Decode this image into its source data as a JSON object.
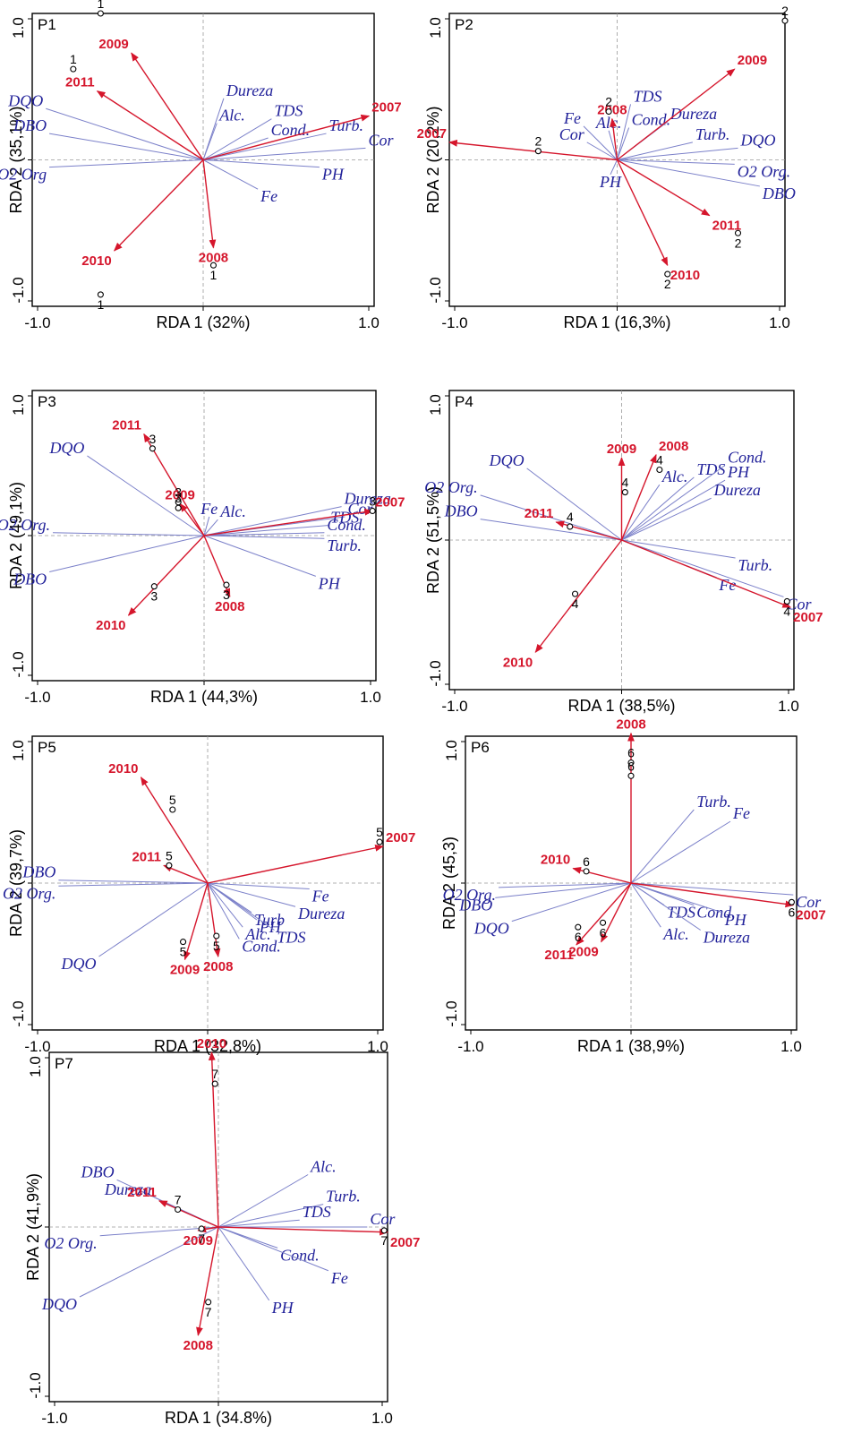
{
  "chart_data": [
    {
      "type": "scatter",
      "panel": "P1",
      "xlabel": "RDA 1 (32%)",
      "ylabel": "RDA 2 (35,1%)",
      "xlim": [
        -1.0,
        1.0
      ],
      "ylim": [
        -1.0,
        1.0
      ],
      "xticks": [
        "-1.0",
        "1.0"
      ],
      "yticks": [
        "1.0",
        "-1.0"
      ],
      "env_vectors": [
        {
          "name": "DQO",
          "x": -0.92,
          "y": 0.35
        },
        {
          "name": "DBO",
          "x": -0.9,
          "y": 0.18
        },
        {
          "name": "O2 Org",
          "x": -0.9,
          "y": -0.05
        },
        {
          "name": "Dureza",
          "x": 0.12,
          "y": 0.42
        },
        {
          "name": "Alc.",
          "x": 0.08,
          "y": 0.25
        },
        {
          "name": "TDS",
          "x": 0.4,
          "y": 0.28
        },
        {
          "name": "Cond.",
          "x": 0.38,
          "y": 0.15
        },
        {
          "name": "Turb.",
          "x": 0.72,
          "y": 0.18
        },
        {
          "name": "Cor",
          "x": 0.95,
          "y": 0.08
        },
        {
          "name": "PH",
          "x": 0.68,
          "y": -0.05
        },
        {
          "name": "Fe",
          "x": 0.32,
          "y": -0.2
        }
      ],
      "year_vectors": [
        {
          "name": "2009",
          "x": -0.42,
          "y": 0.73
        },
        {
          "name": "2011",
          "x": -0.62,
          "y": 0.47
        },
        {
          "name": "2007",
          "x": 0.97,
          "y": 0.3
        },
        {
          "name": "2010",
          "x": -0.52,
          "y": -0.62
        },
        {
          "name": "2008",
          "x": 0.06,
          "y": -0.6
        }
      ],
      "sites": [
        {
          "label": "1",
          "x": -0.6,
          "y": 1.0
        },
        {
          "label": "1",
          "x": -0.76,
          "y": 0.62
        },
        {
          "label": "1",
          "x": 0.06,
          "y": -0.72
        },
        {
          "label": "1",
          "x": -0.6,
          "y": -0.92
        }
      ]
    },
    {
      "type": "scatter",
      "panel": "P2",
      "xlabel": "RDA 1 (16,3%)",
      "ylabel": "RDA 2 (20,2%)",
      "xlim": [
        -1.0,
        1.0
      ],
      "ylim": [
        -1.0,
        1.0
      ],
      "xticks": [
        "-1.0",
        "1.0"
      ],
      "yticks": [
        "1.0",
        "-1.0"
      ],
      "env_vectors": [
        {
          "name": "Fe",
          "x": -0.2,
          "y": 0.23
        },
        {
          "name": "Cor",
          "x": -0.18,
          "y": 0.12
        },
        {
          "name": "Alc.",
          "x": -0.05,
          "y": 0.2
        },
        {
          "name": "TDS",
          "x": 0.08,
          "y": 0.38
        },
        {
          "name": "Cond.",
          "x": 0.07,
          "y": 0.22
        },
        {
          "name": "Dureza",
          "x": 0.3,
          "y": 0.26
        },
        {
          "name": "Turb.",
          "x": 0.45,
          "y": 0.12
        },
        {
          "name": "DQO",
          "x": 0.72,
          "y": 0.08
        },
        {
          "name": "O2 Org.",
          "x": 0.7,
          "y": -0.03
        },
        {
          "name": "DBO",
          "x": 0.85,
          "y": -0.18
        },
        {
          "name": "PH",
          "x": -0.04,
          "y": -0.1
        }
      ],
      "year_vectors": [
        {
          "name": "2009",
          "x": 0.7,
          "y": 0.62
        },
        {
          "name": "2008",
          "x": -0.03,
          "y": 0.28
        },
        {
          "name": "2007",
          "x": -1.0,
          "y": 0.12
        },
        {
          "name": "2011",
          "x": 0.55,
          "y": -0.38
        },
        {
          "name": "2010",
          "x": 0.3,
          "y": -0.72
        }
      ],
      "sites": [
        {
          "label": "2",
          "x": 1.0,
          "y": 0.95
        },
        {
          "label": "2",
          "x": -0.05,
          "y": 0.33
        },
        {
          "label": "2",
          "x": -0.47,
          "y": 0.06
        },
        {
          "label": "2",
          "x": 0.72,
          "y": -0.5
        },
        {
          "label": "2",
          "x": 0.3,
          "y": -0.78
        }
      ]
    },
    {
      "type": "scatter",
      "panel": "P3",
      "xlabel": "RDA 1 (44,3%)",
      "ylabel": "RDA 2 (49,1%)",
      "xlim": [
        -1.0,
        1.0
      ],
      "ylim": [
        -1.0,
        1.0
      ],
      "xticks": [
        "-1.0",
        "1.0"
      ],
      "yticks": [
        "1.0",
        "-1.0"
      ],
      "env_vectors": [
        {
          "name": "DQO",
          "x": -0.68,
          "y": 0.55
        },
        {
          "name": "O2 Org.",
          "x": -0.88,
          "y": 0.02
        },
        {
          "name": "DBO",
          "x": -0.9,
          "y": -0.25
        },
        {
          "name": "Fe",
          "x": 0.03,
          "y": 0.13
        },
        {
          "name": "Alc.",
          "x": 0.08,
          "y": 0.11
        },
        {
          "name": "Dureza",
          "x": 0.8,
          "y": 0.2
        },
        {
          "name": "Cor",
          "x": 0.82,
          "y": 0.13
        },
        {
          "name": "TDS",
          "x": 0.72,
          "y": 0.07
        },
        {
          "name": "Cond.",
          "x": 0.7,
          "y": 0.02
        },
        {
          "name": "Turb.",
          "x": 0.7,
          "y": -0.02
        },
        {
          "name": "PH",
          "x": 0.65,
          "y": -0.28
        }
      ],
      "year_vectors": [
        {
          "name": "2011",
          "x": -0.35,
          "y": 0.7
        },
        {
          "name": "2009",
          "x": -0.14,
          "y": 0.22
        },
        {
          "name": "2007",
          "x": 0.98,
          "y": 0.17
        },
        {
          "name": "2010",
          "x": -0.44,
          "y": -0.55
        },
        {
          "name": "2008",
          "x": 0.15,
          "y": -0.42
        }
      ],
      "sites": [
        {
          "label": "3",
          "x": -0.3,
          "y": 0.6
        },
        {
          "label": "3",
          "x": -0.15,
          "y": 0.23
        },
        {
          "label": "3",
          "x": -0.15,
          "y": 0.19
        },
        {
          "label": "3",
          "x": 0.98,
          "y": 0.17
        },
        {
          "label": "3",
          "x": -0.29,
          "y": -0.35
        },
        {
          "label": "3",
          "x": 0.13,
          "y": -0.34
        }
      ]
    },
    {
      "type": "scatter",
      "panel": "P4",
      "xlabel": "RDA 1 (38,5%)",
      "ylabel": "RDA 2 (51,5%)",
      "xlim": [
        -1.0,
        1.0
      ],
      "ylim": [
        -1.0,
        1.0
      ],
      "xticks": [
        "-1.0",
        "1.0"
      ],
      "yticks": [
        "1.0",
        "-1.0"
      ],
      "env_vectors": [
        {
          "name": "DQO",
          "x": -0.55,
          "y": 0.48
        },
        {
          "name": "O2 Org.",
          "x": -0.82,
          "y": 0.3
        },
        {
          "name": "DBO",
          "x": -0.82,
          "y": 0.14
        },
        {
          "name": "Alc.",
          "x": 0.22,
          "y": 0.37
        },
        {
          "name": "TDS",
          "x": 0.42,
          "y": 0.42
        },
        {
          "name": "Cond.",
          "x": 0.6,
          "y": 0.5
        },
        {
          "name": "PH",
          "x": 0.6,
          "y": 0.4
        },
        {
          "name": "Dureza",
          "x": 0.52,
          "y": 0.28
        },
        {
          "name": "Turb.",
          "x": 0.66,
          "y": -0.12
        },
        {
          "name": "Fe",
          "x": 0.55,
          "y": -0.25
        },
        {
          "name": "Cor",
          "x": 0.94,
          "y": -0.38
        }
      ],
      "year_vectors": [
        {
          "name": "2009",
          "x": 0.0,
          "y": 0.55
        },
        {
          "name": "2008",
          "x": 0.2,
          "y": 0.57
        },
        {
          "name": "2011",
          "x": -0.38,
          "y": 0.12
        },
        {
          "name": "2007",
          "x": 0.98,
          "y": -0.45
        },
        {
          "name": "2010",
          "x": -0.5,
          "y": -0.75
        }
      ],
      "sites": [
        {
          "label": "4",
          "x": 0.22,
          "y": 0.47
        },
        {
          "label": "4",
          "x": 0.02,
          "y": 0.32
        },
        {
          "label": "4",
          "x": -0.3,
          "y": 0.09
        },
        {
          "label": "4",
          "x": -0.27,
          "y": -0.36
        },
        {
          "label": "4",
          "x": 0.96,
          "y": -0.41
        }
      ]
    },
    {
      "type": "scatter",
      "panel": "P5",
      "xlabel": "RDA 1 (32,8%)",
      "ylabel": "RDA 2 (39,7%)",
      "xlim": [
        -1.0,
        1.0
      ],
      "ylim": [
        -1.0,
        1.0
      ],
      "xticks": [
        "-1.0",
        "1.0"
      ],
      "yticks": [
        "1.0",
        "-1.0"
      ],
      "env_vectors": [
        {
          "name": "DBO",
          "x": -0.85,
          "y": 0.02
        },
        {
          "name": "O2 Org.",
          "x": -0.85,
          "y": -0.02
        },
        {
          "name": "DQO",
          "x": -0.62,
          "y": -0.5
        },
        {
          "name": "Fe",
          "x": 0.58,
          "y": -0.04
        },
        {
          "name": "Dureza",
          "x": 0.5,
          "y": -0.16
        },
        {
          "name": "Turb",
          "x": 0.25,
          "y": -0.2
        },
        {
          "name": "PH",
          "x": 0.28,
          "y": -0.25
        },
        {
          "name": "Alc.",
          "x": 0.2,
          "y": -0.3
        },
        {
          "name": "TDS",
          "x": 0.38,
          "y": -0.32
        },
        {
          "name": "Cond.",
          "x": 0.18,
          "y": -0.38
        }
      ],
      "year_vectors": [
        {
          "name": "2010",
          "x": -0.38,
          "y": 0.72
        },
        {
          "name": "2011",
          "x": -0.25,
          "y": 0.12
        },
        {
          "name": "2007",
          "x": 1.0,
          "y": 0.25
        },
        {
          "name": "2009",
          "x": -0.13,
          "y": -0.52
        },
        {
          "name": "2008",
          "x": 0.06,
          "y": -0.5
        }
      ],
      "sites": [
        {
          "label": "5",
          "x": 0.98,
          "y": 0.28
        },
        {
          "label": "5",
          "x": -0.2,
          "y": 0.5
        },
        {
          "label": "5",
          "x": -0.22,
          "y": 0.12
        },
        {
          "label": "5",
          "x": -0.14,
          "y": -0.4
        },
        {
          "label": "5",
          "x": 0.05,
          "y": -0.36
        }
      ]
    },
    {
      "type": "scatter",
      "panel": "P6",
      "xlabel": "RDA 1 (38,9%)",
      "ylabel": "RDA 2 (45,3)",
      "xlim": [
        -1.0,
        1.0
      ],
      "ylim": [
        -1.0,
        1.0
      ],
      "xticks": [
        "-1.0",
        "1.0"
      ],
      "yticks": [
        "1.0",
        "-1.0"
      ],
      "env_vectors": [
        {
          "name": "Turb.",
          "x": 0.38,
          "y": 0.5
        },
        {
          "name": "Fe",
          "x": 0.6,
          "y": 0.42
        },
        {
          "name": "O2 Org.",
          "x": -0.8,
          "y": -0.03
        },
        {
          "name": "DBO",
          "x": -0.82,
          "y": -0.1
        },
        {
          "name": "DQO",
          "x": -0.72,
          "y": -0.26
        },
        {
          "name": "TDS",
          "x": 0.2,
          "y": -0.15
        },
        {
          "name": "Cond.",
          "x": 0.38,
          "y": -0.15
        },
        {
          "name": "PH",
          "x": 0.55,
          "y": -0.2
        },
        {
          "name": "Alc.",
          "x": 0.18,
          "y": -0.3
        },
        {
          "name": "Dureza",
          "x": 0.42,
          "y": -0.32
        },
        {
          "name": "Cor",
          "x": 0.98,
          "y": -0.08
        }
      ],
      "year_vectors": [
        {
          "name": "2008",
          "x": 0.0,
          "y": 1.02
        },
        {
          "name": "2010",
          "x": -0.35,
          "y": 0.1
        },
        {
          "name": "2007",
          "x": 0.98,
          "y": -0.15
        },
        {
          "name": "2011",
          "x": -0.33,
          "y": -0.42
        },
        {
          "name": "2009",
          "x": -0.18,
          "y": -0.4
        }
      ],
      "sites": [
        {
          "label": "6",
          "x": 0.0,
          "y": 0.82
        },
        {
          "label": "6",
          "x": 0.0,
          "y": 0.73
        },
        {
          "label": "6",
          "x": -0.27,
          "y": 0.08
        },
        {
          "label": "6",
          "x": -0.32,
          "y": -0.3
        },
        {
          "label": "6",
          "x": -0.17,
          "y": -0.27
        },
        {
          "label": "6",
          "x": 0.97,
          "y": -0.13
        }
      ]
    },
    {
      "type": "scatter",
      "panel": "P7",
      "xlabel": "RDA 1 (34.8%)",
      "ylabel": "RDA 2 (41,9%)",
      "xlim": [
        -1.0,
        1.0
      ],
      "ylim": [
        -1.0,
        1.0
      ],
      "xticks": [
        "-1.0",
        "1.0"
      ],
      "yticks": [
        "1.0",
        "-1.0"
      ],
      "env_vectors": [
        {
          "name": "DBO",
          "x": -0.6,
          "y": 0.27
        },
        {
          "name": "Dureza",
          "x": -0.38,
          "y": 0.17
        },
        {
          "name": "O2 Org.",
          "x": -0.7,
          "y": -0.05
        },
        {
          "name": "DQO",
          "x": -0.82,
          "y": -0.4
        },
        {
          "name": "Alc.",
          "x": 0.53,
          "y": 0.3
        },
        {
          "name": "Turb.",
          "x": 0.62,
          "y": 0.13
        },
        {
          "name": "TDS",
          "x": 0.48,
          "y": 0.04
        },
        {
          "name": "Cor",
          "x": 0.88,
          "y": 0.0
        },
        {
          "name": "Cond.",
          "x": 0.35,
          "y": -0.12
        },
        {
          "name": "Fe",
          "x": 0.65,
          "y": -0.25
        },
        {
          "name": "PH",
          "x": 0.3,
          "y": -0.42
        }
      ],
      "year_vectors": [
        {
          "name": "2010",
          "x": -0.04,
          "y": 1.0
        },
        {
          "name": "2011",
          "x": -0.35,
          "y": 0.15
        },
        {
          "name": "2009",
          "x": -0.12,
          "y": -0.02
        },
        {
          "name": "2007",
          "x": 1.0,
          "y": -0.03
        },
        {
          "name": "2008",
          "x": -0.12,
          "y": -0.62
        }
      ],
      "sites": [
        {
          "label": "7",
          "x": -0.02,
          "y": 0.82
        },
        {
          "label": "7",
          "x": -0.24,
          "y": 0.1
        },
        {
          "label": "7",
          "x": -0.1,
          "y": -0.01
        },
        {
          "label": "7",
          "x": -0.06,
          "y": -0.43
        },
        {
          "label": "7",
          "x": 0.98,
          "y": -0.02
        }
      ]
    }
  ]
}
